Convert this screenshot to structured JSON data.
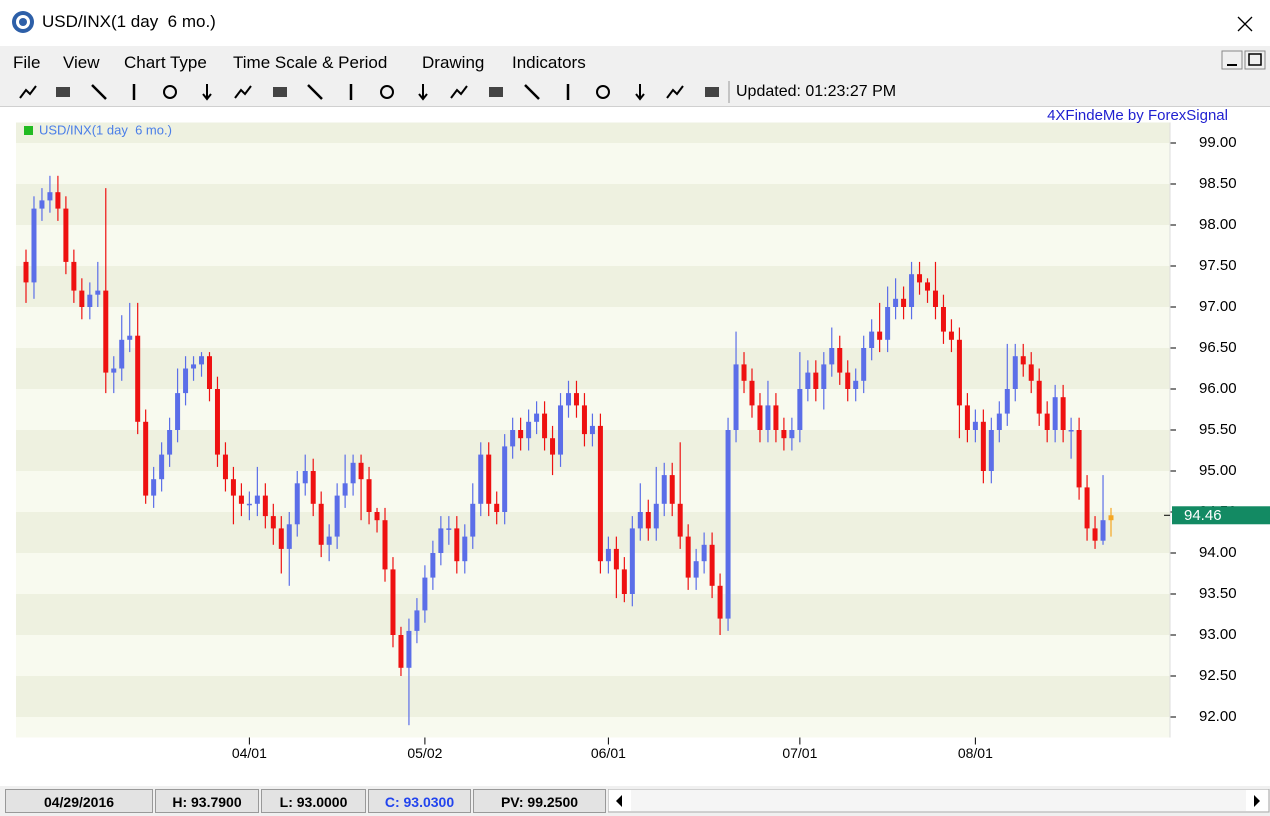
{
  "window": {
    "title": "USD/INX(1 day  6 mo.)"
  },
  "menu": [
    "File",
    "View",
    "Chart Type",
    "Time Scale & Period",
    "Drawing",
    "Indicators"
  ],
  "toolbar": {
    "updated": "Updated: 01:23:27 PM"
  },
  "status": [
    "04/29/2016",
    "H: 93.7900",
    "L: 93.0000",
    "C: 93.0300",
    "PV: 99.2500"
  ],
  "chart_data": {
    "type": "candlestick",
    "annotation": "4XFindeMe by ForexSignal",
    "series_name": "USD/INX(1 day  6 mo.)",
    "legend_color": "#22bb22",
    "up_color": "#5b6ee8",
    "down_color": "#ee1111",
    "last_color": "#f5a623",
    "last_price": 94.46,
    "last_price_color": "#138a63",
    "ylim": [
      91.75,
      99.25
    ],
    "yticks": [
      {
        "value": 92,
        "label": "92.00"
      },
      {
        "value": 92.5,
        "label": "92.50"
      },
      {
        "value": 93,
        "label": "93.00"
      },
      {
        "value": 93.5,
        "label": "93.50"
      },
      {
        "value": 94,
        "label": "94.00"
      },
      {
        "value": 94.5,
        "label": "94.50"
      },
      {
        "value": 95,
        "label": "95.00"
      },
      {
        "value": 95.5,
        "label": "95.50"
      },
      {
        "value": 96,
        "label": "96.00"
      },
      {
        "value": 96.5,
        "label": "96.50"
      },
      {
        "value": 97,
        "label": "97.00"
      },
      {
        "value": 97.5,
        "label": "97.50"
      },
      {
        "value": 98,
        "label": "98.00"
      },
      {
        "value": 98.5,
        "label": "98.50"
      },
      {
        "value": 99,
        "label": "99.00"
      }
    ],
    "categories": [
      null,
      null,
      null,
      null,
      null,
      null,
      null,
      null,
      null,
      null,
      null,
      null,
      null,
      null,
      null,
      null,
      null,
      null,
      null,
      null,
      null,
      null,
      null,
      null,
      null,
      null,
      null,
      null,
      "04/01",
      null,
      null,
      null,
      null,
      null,
      null,
      null,
      null,
      null,
      null,
      null,
      null,
      null,
      null,
      null,
      null,
      null,
      null,
      null,
      null,
      null,
      "05/02",
      null,
      null,
      null,
      null,
      null,
      null,
      null,
      null,
      null,
      null,
      null,
      null,
      null,
      null,
      null,
      null,
      null,
      null,
      null,
      null,
      null,
      null,
      "06/01",
      null,
      null,
      null,
      null,
      null,
      null,
      null,
      null,
      null,
      null,
      null,
      null,
      null,
      null,
      null,
      null,
      null,
      null,
      null,
      null,
      null,
      null,
      null,
      "07/01",
      null,
      null,
      null,
      null,
      null,
      null,
      null,
      null,
      null,
      null,
      null,
      null,
      null,
      null,
      null,
      null,
      null,
      null,
      null,
      null,
      null,
      "08/01",
      null,
      null,
      null,
      null,
      null,
      null,
      null,
      null,
      null,
      null,
      null,
      null,
      null,
      null,
      null,
      null,
      null
    ],
    "open": [
      97.55,
      97.3,
      98.2,
      98.3,
      98.4,
      98.2,
      97.55,
      97.2,
      97.0,
      97.15,
      97.2,
      96.2,
      96.25,
      96.6,
      96.65,
      95.6,
      94.7,
      94.9,
      95.2,
      95.5,
      95.95,
      96.25,
      96.3,
      96.4,
      96.0,
      95.2,
      94.9,
      94.7,
      94.6,
      94.6,
      94.7,
      94.45,
      94.3,
      94.05,
      94.35,
      94.85,
      95.0,
      94.6,
      94.1,
      94.2,
      94.7,
      94.85,
      95.1,
      94.9,
      94.5,
      94.4,
      93.8,
      93.0,
      92.6,
      93.05,
      93.3,
      93.7,
      94.0,
      94.3,
      94.3,
      93.9,
      94.2,
      94.6,
      95.2,
      94.6,
      94.5,
      95.3,
      95.5,
      95.4,
      95.6,
      95.7,
      95.4,
      95.2,
      95.8,
      95.95,
      95.8,
      95.45,
      95.55,
      93.9,
      94.05,
      93.8,
      93.5,
      94.3,
      94.5,
      94.3,
      94.6,
      94.95,
      94.6,
      94.2,
      93.7,
      93.9,
      94.1,
      93.6,
      93.2,
      95.5,
      96.3,
      96.1,
      95.8,
      95.5,
      95.8,
      95.5,
      95.4,
      95.5,
      96.0,
      96.2,
      96.0,
      96.3,
      96.5,
      96.2,
      96.0,
      96.1,
      96.5,
      96.7,
      96.6,
      97.0,
      97.1,
      97.0,
      97.4,
      97.3,
      97.2,
      97.0,
      96.7,
      96.6,
      95.8,
      95.5,
      95.6,
      95.0,
      95.5,
      95.7,
      96.0,
      96.4,
      96.3,
      96.1,
      95.7,
      95.5,
      95.9,
      95.5,
      95.5,
      94.8,
      94.3,
      94.15,
      94.4
    ],
    "high": [
      97.7,
      98.35,
      98.45,
      98.6,
      98.6,
      98.35,
      97.7,
      97.35,
      97.3,
      97.55,
      98.45,
      96.4,
      96.9,
      97.05,
      97.05,
      95.75,
      95.05,
      95.35,
      95.65,
      96.25,
      96.4,
      96.4,
      96.45,
      96.45,
      96.15,
      95.35,
      95.05,
      94.85,
      94.75,
      95.05,
      94.85,
      94.6,
      94.45,
      94.5,
      95.0,
      95.2,
      95.15,
      94.75,
      94.35,
      94.85,
      95.2,
      95.2,
      95.2,
      95.05,
      94.55,
      94.55,
      93.95,
      93.1,
      93.2,
      93.45,
      93.85,
      94.15,
      94.45,
      94.45,
      94.45,
      94.35,
      94.85,
      95.35,
      95.35,
      94.75,
      95.45,
      95.65,
      95.65,
      95.75,
      95.85,
      95.85,
      95.55,
      95.95,
      96.1,
      96.1,
      95.95,
      95.7,
      95.7,
      94.2,
      94.2,
      93.95,
      94.45,
      94.85,
      94.65,
      95.05,
      95.1,
      95.1,
      95.35,
      94.35,
      94.05,
      94.25,
      94.25,
      93.75,
      95.65,
      96.7,
      96.45,
      96.25,
      95.95,
      96.1,
      95.95,
      95.65,
      95.65,
      96.45,
      96.35,
      96.35,
      96.45,
      96.75,
      96.65,
      96.35,
      96.25,
      96.65,
      96.85,
      97.05,
      97.25,
      97.35,
      97.25,
      97.55,
      97.55,
      97.35,
      97.55,
      97.15,
      96.85,
      96.75,
      95.95,
      95.75,
      95.75,
      95.65,
      95.85,
      96.55,
      96.55,
      96.55,
      96.45,
      96.25,
      95.85,
      96.05,
      96.05,
      95.65,
      95.65,
      94.95,
      94.45,
      94.95,
      94.55
    ],
    "low": [
      97.05,
      97.1,
      98.05,
      98.15,
      98.05,
      97.4,
      97.05,
      96.85,
      96.85,
      97.0,
      95.95,
      95.95,
      96.1,
      96.45,
      95.45,
      94.6,
      94.55,
      94.75,
      95.05,
      95.35,
      95.8,
      96.1,
      96.15,
      95.85,
      95.05,
      94.75,
      94.35,
      94.45,
      94.4,
      94.45,
      94.3,
      94.1,
      93.75,
      93.6,
      94.2,
      94.7,
      94.45,
      93.95,
      93.9,
      94.05,
      94.55,
      94.7,
      94.4,
      94.35,
      94.25,
      93.65,
      92.85,
      92.5,
      91.9,
      92.9,
      93.15,
      93.55,
      93.85,
      94.1,
      93.75,
      93.75,
      94.05,
      94.45,
      94.45,
      94.35,
      94.35,
      95.15,
      95.25,
      95.25,
      95.45,
      95.25,
      94.95,
      95.05,
      95.65,
      95.65,
      95.3,
      95.3,
      93.75,
      93.75,
      93.45,
      93.4,
      93.35,
      94.15,
      94.15,
      94.15,
      94.45,
      94.45,
      94.05,
      93.55,
      93.55,
      93.75,
      93.45,
      93.0,
      93.05,
      95.35,
      95.95,
      95.65,
      95.35,
      95.35,
      95.35,
      95.25,
      95.25,
      95.35,
      95.85,
      95.85,
      95.75,
      96.15,
      96.05,
      95.85,
      95.85,
      95.95,
      96.35,
      96.45,
      96.45,
      96.85,
      96.85,
      96.85,
      97.15,
      97.05,
      96.85,
      96.55,
      96.45,
      95.4,
      95.35,
      95.35,
      94.85,
      94.85,
      95.35,
      95.55,
      95.85,
      96.15,
      95.95,
      95.55,
      95.35,
      95.35,
      95.35,
      95.15,
      94.65,
      94.15,
      94.05,
      94.1,
      94.2
    ],
    "close": [
      97.3,
      98.2,
      98.3,
      98.4,
      98.2,
      97.55,
      97.2,
      97.0,
      97.15,
      97.2,
      96.2,
      96.25,
      96.6,
      96.65,
      95.6,
      94.7,
      94.9,
      95.2,
      95.5,
      95.95,
      96.25,
      96.3,
      96.4,
      96.0,
      95.2,
      94.9,
      94.7,
      94.6,
      94.6,
      94.7,
      94.45,
      94.3,
      94.05,
      94.35,
      94.85,
      95.0,
      94.6,
      94.1,
      94.2,
      94.7,
      94.85,
      95.1,
      94.9,
      94.5,
      94.4,
      93.8,
      93.0,
      92.6,
      93.05,
      93.3,
      93.7,
      94.0,
      94.3,
      94.3,
      93.9,
      94.2,
      94.6,
      95.2,
      94.6,
      94.5,
      95.3,
      95.5,
      95.4,
      95.6,
      95.7,
      95.4,
      95.2,
      95.8,
      95.95,
      95.8,
      95.45,
      95.55,
      93.9,
      94.05,
      93.8,
      93.5,
      94.3,
      94.5,
      94.3,
      94.6,
      94.95,
      94.6,
      94.2,
      93.7,
      93.9,
      94.1,
      93.6,
      93.2,
      95.5,
      96.3,
      96.1,
      95.8,
      95.5,
      95.8,
      95.5,
      95.4,
      95.5,
      96.0,
      96.2,
      96.0,
      96.3,
      96.5,
      96.2,
      96.0,
      96.1,
      96.5,
      96.7,
      96.6,
      97.0,
      97.1,
      97.0,
      97.4,
      97.3,
      97.2,
      97.0,
      96.7,
      96.6,
      95.8,
      95.5,
      95.6,
      95.0,
      95.5,
      95.7,
      96.0,
      96.4,
      96.3,
      96.1,
      95.7,
      95.5,
      95.9,
      95.5,
      95.5,
      94.8,
      94.3,
      94.15,
      94.4,
      94.46
    ]
  }
}
